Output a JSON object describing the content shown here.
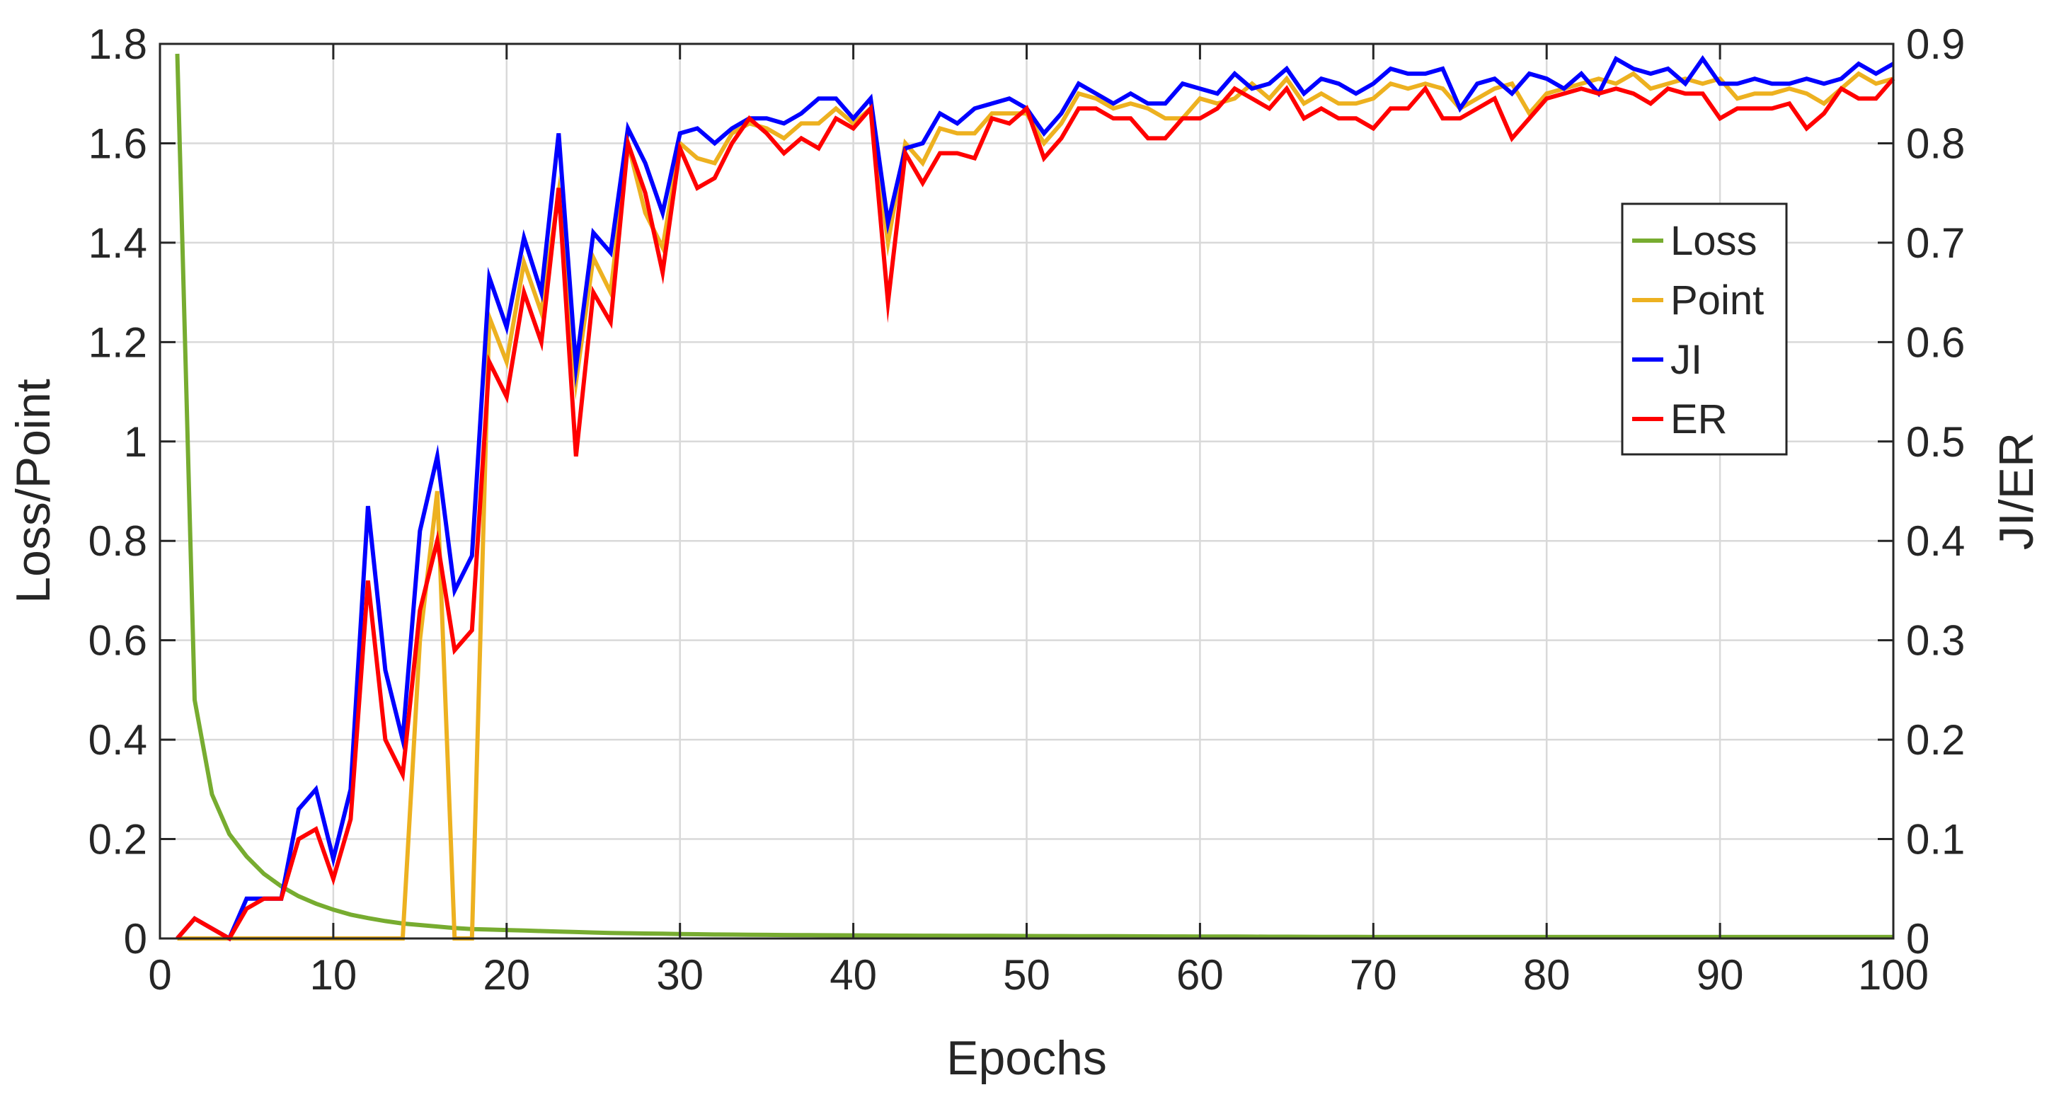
{
  "chart_data": {
    "type": "line",
    "xlabel": "Epochs",
    "ylabel_left": "Loss/Point",
    "ylabel_right": "JI/ER",
    "xlim": [
      0,
      100
    ],
    "ylim_left": [
      0,
      1.8
    ],
    "ylim_right": [
      0,
      0.9
    ],
    "xticks": [
      "0",
      "10",
      "20",
      "30",
      "40",
      "50",
      "60",
      "70",
      "80",
      "90",
      "100"
    ],
    "yticks_left": [
      "0",
      "0.2",
      "0.4",
      "0.6",
      "0.8",
      "1",
      "1.2",
      "1.4",
      "1.6",
      "1.8"
    ],
    "yticks_right": [
      "0",
      "0.1",
      "0.2",
      "0.3",
      "0.4",
      "0.5",
      "0.6",
      "0.7",
      "0.8",
      "0.9"
    ],
    "grid": true,
    "legend_position": "right",
    "x": [
      1,
      2,
      3,
      4,
      5,
      6,
      7,
      8,
      9,
      10,
      11,
      12,
      13,
      14,
      15,
      16,
      17,
      18,
      19,
      20,
      21,
      22,
      23,
      24,
      25,
      26,
      27,
      28,
      29,
      30,
      31,
      32,
      33,
      34,
      35,
      36,
      37,
      38,
      39,
      40,
      41,
      42,
      43,
      44,
      45,
      46,
      47,
      48,
      49,
      50,
      51,
      52,
      53,
      54,
      55,
      56,
      57,
      58,
      59,
      60,
      61,
      62,
      63,
      64,
      65,
      66,
      67,
      68,
      69,
      70,
      71,
      72,
      73,
      74,
      75,
      76,
      77,
      78,
      79,
      80,
      81,
      82,
      83,
      84,
      85,
      86,
      87,
      88,
      89,
      90,
      91,
      92,
      93,
      94,
      95,
      96,
      97,
      98,
      99,
      100
    ],
    "series": [
      {
        "name": "Loss",
        "axis": "left",
        "color": "#77ac30",
        "values": [
          1.78,
          0.48,
          0.29,
          0.21,
          0.165,
          0.13,
          0.105,
          0.085,
          0.07,
          0.058,
          0.048,
          0.041,
          0.035,
          0.03,
          0.027,
          0.024,
          0.021,
          0.019,
          0.018,
          0.017,
          0.016,
          0.015,
          0.014,
          0.013,
          0.012,
          0.011,
          0.0105,
          0.01,
          0.0095,
          0.009,
          0.0085,
          0.008,
          0.0078,
          0.0075,
          0.0072,
          0.007,
          0.0068,
          0.0066,
          0.0064,
          0.0062,
          0.006,
          0.0058,
          0.0057,
          0.0056,
          0.0055,
          0.0054,
          0.0053,
          0.0052,
          0.0051,
          0.005,
          0.0049,
          0.0048,
          0.0047,
          0.0046,
          0.0045,
          0.0044,
          0.0043,
          0.0042,
          0.0041,
          0.004,
          0.0039,
          0.0038,
          0.0037,
          0.0036,
          0.0035,
          0.0034,
          0.0033,
          0.0032,
          0.0031,
          0.003,
          0.003,
          0.003,
          0.003,
          0.003,
          0.003,
          0.003,
          0.003,
          0.003,
          0.003,
          0.003,
          0.003,
          0.003,
          0.003,
          0.003,
          0.003,
          0.003,
          0.003,
          0.003,
          0.003,
          0.003,
          0.003,
          0.003,
          0.003,
          0.003,
          0.003,
          0.003,
          0.003,
          0.003,
          0.003,
          0.003
        ]
      },
      {
        "name": "Point",
        "axis": "left",
        "color": "#edb120",
        "values": [
          0,
          0,
          0,
          0,
          0,
          0,
          0,
          0,
          0,
          0,
          0,
          0,
          0,
          0,
          0.6,
          0.9,
          0,
          0,
          1.25,
          1.16,
          1.36,
          1.26,
          1.5,
          1.12,
          1.37,
          1.3,
          1.6,
          1.46,
          1.39,
          1.6,
          1.57,
          1.56,
          1.62,
          1.64,
          1.63,
          1.61,
          1.64,
          1.64,
          1.67,
          1.64,
          1.67,
          1.4,
          1.6,
          1.56,
          1.63,
          1.62,
          1.62,
          1.66,
          1.66,
          1.66,
          1.6,
          1.64,
          1.7,
          1.69,
          1.67,
          1.68,
          1.67,
          1.65,
          1.65,
          1.69,
          1.68,
          1.69,
          1.72,
          1.69,
          1.73,
          1.68,
          1.7,
          1.68,
          1.68,
          1.69,
          1.72,
          1.71,
          1.72,
          1.71,
          1.67,
          1.69,
          1.71,
          1.72,
          1.66,
          1.7,
          1.71,
          1.72,
          1.73,
          1.72,
          1.74,
          1.71,
          1.72,
          1.73,
          1.72,
          1.73,
          1.69,
          1.7,
          1.7,
          1.71,
          1.7,
          1.68,
          1.71,
          1.74,
          1.72,
          1.73
        ]
      },
      {
        "name": "JI",
        "axis": "right",
        "color": "#0000ff",
        "values": [
          0,
          0.02,
          0.01,
          0,
          0.04,
          0.04,
          0.04,
          0.13,
          0.15,
          0.08,
          0.15,
          0.435,
          0.27,
          0.2,
          0.41,
          0.485,
          0.35,
          0.385,
          0.665,
          0.615,
          0.705,
          0.65,
          0.81,
          0.575,
          0.71,
          0.69,
          0.815,
          0.78,
          0.73,
          0.81,
          0.815,
          0.8,
          0.815,
          0.825,
          0.825,
          0.82,
          0.83,
          0.845,
          0.845,
          0.825,
          0.845,
          0.72,
          0.795,
          0.8,
          0.83,
          0.82,
          0.835,
          0.84,
          0.845,
          0.835,
          0.81,
          0.83,
          0.86,
          0.85,
          0.84,
          0.85,
          0.84,
          0.84,
          0.86,
          0.855,
          0.85,
          0.87,
          0.855,
          0.86,
          0.875,
          0.85,
          0.865,
          0.86,
          0.85,
          0.86,
          0.875,
          0.87,
          0.87,
          0.875,
          0.835,
          0.86,
          0.865,
          0.85,
          0.87,
          0.865,
          0.855,
          0.87,
          0.85,
          0.885,
          0.875,
          0.87,
          0.875,
          0.86,
          0.885,
          0.86,
          0.86,
          0.865,
          0.86,
          0.86,
          0.865,
          0.86,
          0.865,
          0.88,
          0.87,
          0.88
        ]
      },
      {
        "name": "ER",
        "axis": "right",
        "color": "#ff0000",
        "values": [
          0,
          0.02,
          0.01,
          0,
          0.03,
          0.04,
          0.04,
          0.1,
          0.11,
          0.06,
          0.12,
          0.36,
          0.2,
          0.165,
          0.33,
          0.4,
          0.29,
          0.31,
          0.58,
          0.545,
          0.65,
          0.6,
          0.755,
          0.485,
          0.65,
          0.62,
          0.8,
          0.75,
          0.67,
          0.795,
          0.755,
          0.765,
          0.8,
          0.825,
          0.81,
          0.79,
          0.805,
          0.795,
          0.825,
          0.815,
          0.835,
          0.64,
          0.79,
          0.76,
          0.79,
          0.79,
          0.785,
          0.825,
          0.82,
          0.835,
          0.785,
          0.805,
          0.835,
          0.835,
          0.825,
          0.825,
          0.805,
          0.805,
          0.825,
          0.825,
          0.835,
          0.855,
          0.845,
          0.835,
          0.855,
          0.825,
          0.835,
          0.825,
          0.825,
          0.815,
          0.835,
          0.835,
          0.855,
          0.825,
          0.825,
          0.835,
          0.845,
          0.805,
          0.825,
          0.845,
          0.85,
          0.855,
          0.85,
          0.855,
          0.85,
          0.84,
          0.855,
          0.85,
          0.85,
          0.825,
          0.835,
          0.835,
          0.835,
          0.84,
          0.815,
          0.83,
          0.855,
          0.845,
          0.845,
          0.865
        ]
      }
    ]
  }
}
